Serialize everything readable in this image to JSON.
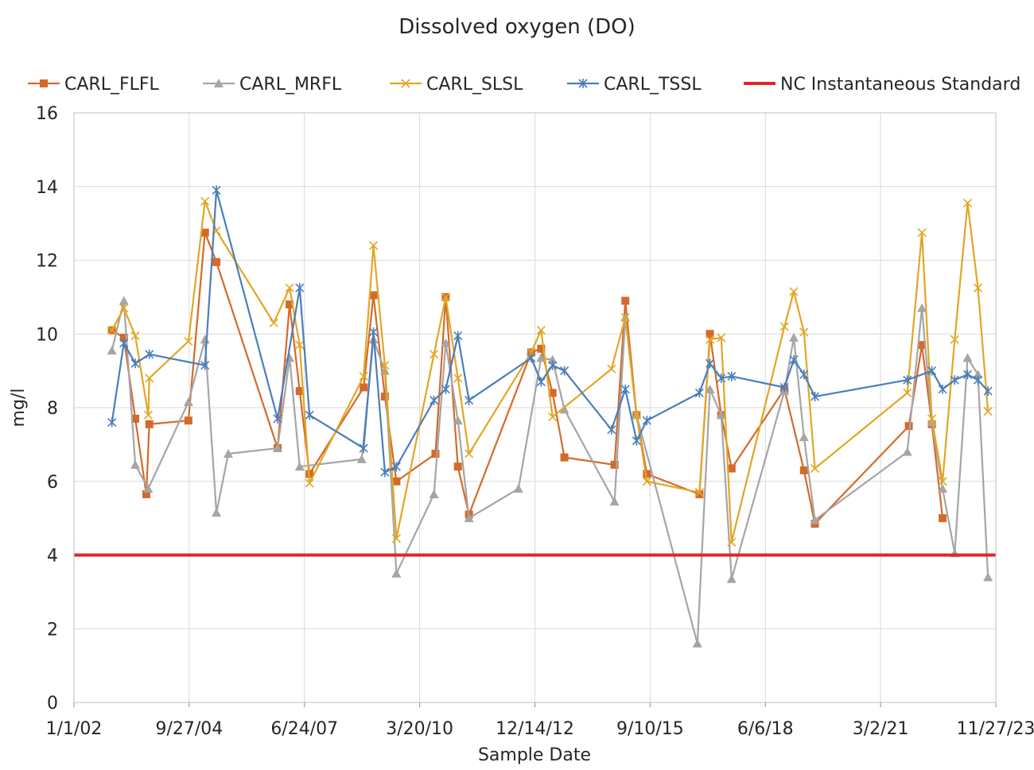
{
  "chart_data": {
    "type": "line",
    "title": "Dissolved oxygen (DO)",
    "xlabel": "Sample Date",
    "ylabel": "mg/l",
    "ylim": [
      0,
      16
    ],
    "yticks": [
      0,
      2,
      4,
      6,
      8,
      10,
      12,
      14,
      16
    ],
    "xlim": [
      "2002-01-01",
      "2023-11-27"
    ],
    "xticks": [
      {
        "date": "2002-01-01",
        "label": "1/1/02"
      },
      {
        "date": "2004-09-27",
        "label": "9/27/04"
      },
      {
        "date": "2007-06-24",
        "label": "6/24/07"
      },
      {
        "date": "2010-03-20",
        "label": "3/20/10"
      },
      {
        "date": "2012-12-14",
        "label": "12/14/12"
      },
      {
        "date": "2015-09-10",
        "label": "9/10/15"
      },
      {
        "date": "2018-06-06",
        "label": "6/6/18"
      },
      {
        "date": "2021-03-02",
        "label": "3/2/21"
      },
      {
        "date": "2023-11-27",
        "label": "11/27/23"
      }
    ],
    "grid": true,
    "legend_position": "top",
    "series": [
      {
        "name": "CARL_FLFL",
        "color": "#D46A2A",
        "marker": "square",
        "points": [
          [
            "2002-11-26",
            10.1
          ],
          [
            "2003-03-10",
            9.9
          ],
          [
            "2003-06-17",
            7.7
          ],
          [
            "2003-09-21",
            5.65
          ],
          [
            "2003-10-17",
            7.55
          ],
          [
            "2004-09-20",
            7.65
          ],
          [
            "2005-02-11",
            12.75
          ],
          [
            "2005-05-21",
            11.95
          ],
          [
            "2006-11-03",
            6.9
          ],
          [
            "2007-02-15",
            10.8
          ],
          [
            "2007-05-14",
            8.45
          ],
          [
            "2007-08-07",
            6.2
          ],
          [
            "2008-11-19",
            8.55
          ],
          [
            "2009-02-12",
            11.05
          ],
          [
            "2009-05-22",
            8.3
          ],
          [
            "2009-08-30",
            6.0
          ],
          [
            "2010-08-04",
            6.75
          ],
          [
            "2010-11-01",
            11.0
          ],
          [
            "2011-02-15",
            6.4
          ],
          [
            "2011-05-22",
            5.1
          ],
          [
            "2012-11-12",
            9.5
          ],
          [
            "2013-02-06",
            9.6
          ],
          [
            "2013-05-16",
            8.4
          ],
          [
            "2013-08-27",
            6.65
          ],
          [
            "2014-11-05",
            6.45
          ],
          [
            "2015-02-07",
            10.9
          ],
          [
            "2015-05-15",
            7.8
          ],
          [
            "2015-08-13",
            6.2
          ],
          [
            "2016-11-11",
            5.65
          ],
          [
            "2017-02-10",
            10.0
          ],
          [
            "2017-05-19",
            7.8
          ],
          [
            "2017-08-17",
            6.35
          ],
          [
            "2018-11-18",
            8.5
          ],
          [
            "2019-05-07",
            6.3
          ],
          [
            "2019-08-10",
            4.85
          ],
          [
            "2021-11-02",
            7.5
          ],
          [
            "2022-02-24",
            9.7
          ],
          [
            "2022-05-21",
            7.55
          ],
          [
            "2022-08-22",
            5.0
          ]
        ]
      },
      {
        "name": "CARL_MRFL",
        "color": "#A5A5A5",
        "marker": "triangle",
        "points": [
          [
            "2002-11-26",
            9.55
          ],
          [
            "2003-03-10",
            10.9
          ],
          [
            "2003-06-17",
            6.45
          ],
          [
            "2003-10-08",
            5.8
          ],
          [
            "2004-09-20",
            8.15
          ],
          [
            "2005-02-11",
            9.85
          ],
          [
            "2005-05-21",
            5.15
          ],
          [
            "2005-09-01",
            6.75
          ],
          [
            "2006-11-03",
            6.9
          ],
          [
            "2007-02-15",
            9.35
          ],
          [
            "2007-05-14",
            6.4
          ],
          [
            "2008-11-02",
            6.6
          ],
          [
            "2009-02-12",
            9.85
          ],
          [
            "2009-05-22",
            9.0
          ],
          [
            "2009-08-30",
            3.5
          ],
          [
            "2010-07-22",
            5.65
          ],
          [
            "2010-11-01",
            9.75
          ],
          [
            "2011-02-15",
            7.65
          ],
          [
            "2011-05-22",
            5.0
          ],
          [
            "2012-07-24",
            5.8
          ],
          [
            "2013-02-06",
            9.35
          ],
          [
            "2013-05-16",
            9.3
          ],
          [
            "2013-08-27",
            7.95
          ],
          [
            "2014-11-05",
            5.45
          ],
          [
            "2015-02-07",
            10.45
          ],
          [
            "2015-05-15",
            7.8
          ],
          [
            "2016-10-24",
            1.6
          ],
          [
            "2017-02-10",
            8.5
          ],
          [
            "2017-05-19",
            7.8
          ],
          [
            "2017-08-17",
            3.35
          ],
          [
            "2018-11-18",
            8.45
          ],
          [
            "2019-02-08",
            9.9
          ],
          [
            "2019-05-07",
            7.2
          ],
          [
            "2019-08-10",
            4.95
          ],
          [
            "2021-10-20",
            6.8
          ],
          [
            "2022-02-24",
            10.7
          ],
          [
            "2022-05-21",
            7.6
          ],
          [
            "2022-08-22",
            5.8
          ],
          [
            "2022-12-05",
            4.05
          ],
          [
            "2023-03-27",
            9.35
          ],
          [
            "2023-06-25",
            8.9
          ],
          [
            "2023-09-20",
            3.4
          ]
        ]
      },
      {
        "name": "CARL_SLSL",
        "color": "#E2A624",
        "marker": "x",
        "points": [
          [
            "2002-11-26",
            10.1
          ],
          [
            "2003-03-10",
            10.7
          ],
          [
            "2003-06-17",
            9.95
          ],
          [
            "2003-10-08",
            7.8
          ],
          [
            "2003-10-17",
            8.8
          ],
          [
            "2004-09-20",
            9.8
          ],
          [
            "2005-02-11",
            13.6
          ],
          [
            "2005-05-21",
            12.8
          ],
          [
            "2006-10-01",
            10.3
          ],
          [
            "2007-02-15",
            11.25
          ],
          [
            "2007-05-14",
            9.7
          ],
          [
            "2007-08-07",
            5.95
          ],
          [
            "2008-11-19",
            8.85
          ],
          [
            "2009-02-12",
            12.4
          ],
          [
            "2009-05-22",
            9.15
          ],
          [
            "2009-08-30",
            4.45
          ],
          [
            "2010-07-22",
            9.45
          ],
          [
            "2010-11-01",
            11.0
          ],
          [
            "2011-02-15",
            8.8
          ],
          [
            "2011-05-22",
            6.75
          ],
          [
            "2012-11-12",
            9.5
          ],
          [
            "2013-02-06",
            10.1
          ],
          [
            "2013-05-16",
            7.75
          ],
          [
            "2014-10-10",
            9.05
          ],
          [
            "2015-02-07",
            10.45
          ],
          [
            "2015-05-15",
            7.8
          ],
          [
            "2015-08-13",
            6.0
          ],
          [
            "2016-11-11",
            5.7
          ],
          [
            "2017-02-10",
            9.85
          ],
          [
            "2017-05-19",
            9.9
          ],
          [
            "2017-08-17",
            4.35
          ],
          [
            "2018-11-18",
            10.2
          ],
          [
            "2019-02-08",
            11.15
          ],
          [
            "2019-05-07",
            10.05
          ],
          [
            "2019-08-10",
            6.35
          ],
          [
            "2021-10-20",
            8.4
          ],
          [
            "2022-02-24",
            12.75
          ],
          [
            "2022-05-21",
            7.7
          ],
          [
            "2022-08-22",
            6.0
          ],
          [
            "2022-12-05",
            9.85
          ],
          [
            "2023-03-27",
            13.55
          ],
          [
            "2023-06-25",
            11.25
          ],
          [
            "2023-09-20",
            7.9
          ]
        ]
      },
      {
        "name": "CARL_TSSL",
        "color": "#4A7EBB",
        "marker": "star",
        "points": [
          [
            "2002-11-26",
            7.6
          ],
          [
            "2003-03-10",
            9.75
          ],
          [
            "2003-06-17",
            9.2
          ],
          [
            "2003-10-17",
            9.45
          ],
          [
            "2005-02-11",
            9.15
          ],
          [
            "2005-05-21",
            13.9
          ],
          [
            "2006-11-03",
            7.7
          ],
          [
            "2007-05-14",
            11.25
          ],
          [
            "2007-08-07",
            7.8
          ],
          [
            "2008-11-19",
            6.9
          ],
          [
            "2009-02-12",
            10.05
          ],
          [
            "2009-05-22",
            6.25
          ],
          [
            "2009-08-30",
            6.4
          ],
          [
            "2010-07-22",
            8.2
          ],
          [
            "2010-11-01",
            8.5
          ],
          [
            "2011-02-15",
            9.95
          ],
          [
            "2011-05-22",
            8.2
          ],
          [
            "2012-11-12",
            9.35
          ],
          [
            "2013-02-06",
            8.7
          ],
          [
            "2013-05-16",
            9.15
          ],
          [
            "2013-08-27",
            9.0
          ],
          [
            "2014-10-10",
            7.4
          ],
          [
            "2015-02-07",
            8.5
          ],
          [
            "2015-05-15",
            7.1
          ],
          [
            "2015-08-13",
            7.65
          ],
          [
            "2016-11-11",
            8.4
          ],
          [
            "2017-02-10",
            9.2
          ],
          [
            "2017-05-19",
            8.8
          ],
          [
            "2017-08-17",
            8.85
          ],
          [
            "2018-11-18",
            8.55
          ],
          [
            "2019-02-08",
            9.3
          ],
          [
            "2019-05-07",
            8.9
          ],
          [
            "2019-08-10",
            8.3
          ],
          [
            "2021-10-20",
            8.75
          ],
          [
            "2022-05-21",
            9.0
          ],
          [
            "2022-08-22",
            8.5
          ],
          [
            "2022-12-05",
            8.75
          ],
          [
            "2023-03-27",
            8.9
          ],
          [
            "2023-06-25",
            8.75
          ],
          [
            "2023-09-20",
            8.45
          ]
        ]
      }
    ],
    "reference_lines": [
      {
        "name": "NC Instantaneous Standard",
        "y": 4,
        "color": "#E3242B"
      }
    ]
  }
}
